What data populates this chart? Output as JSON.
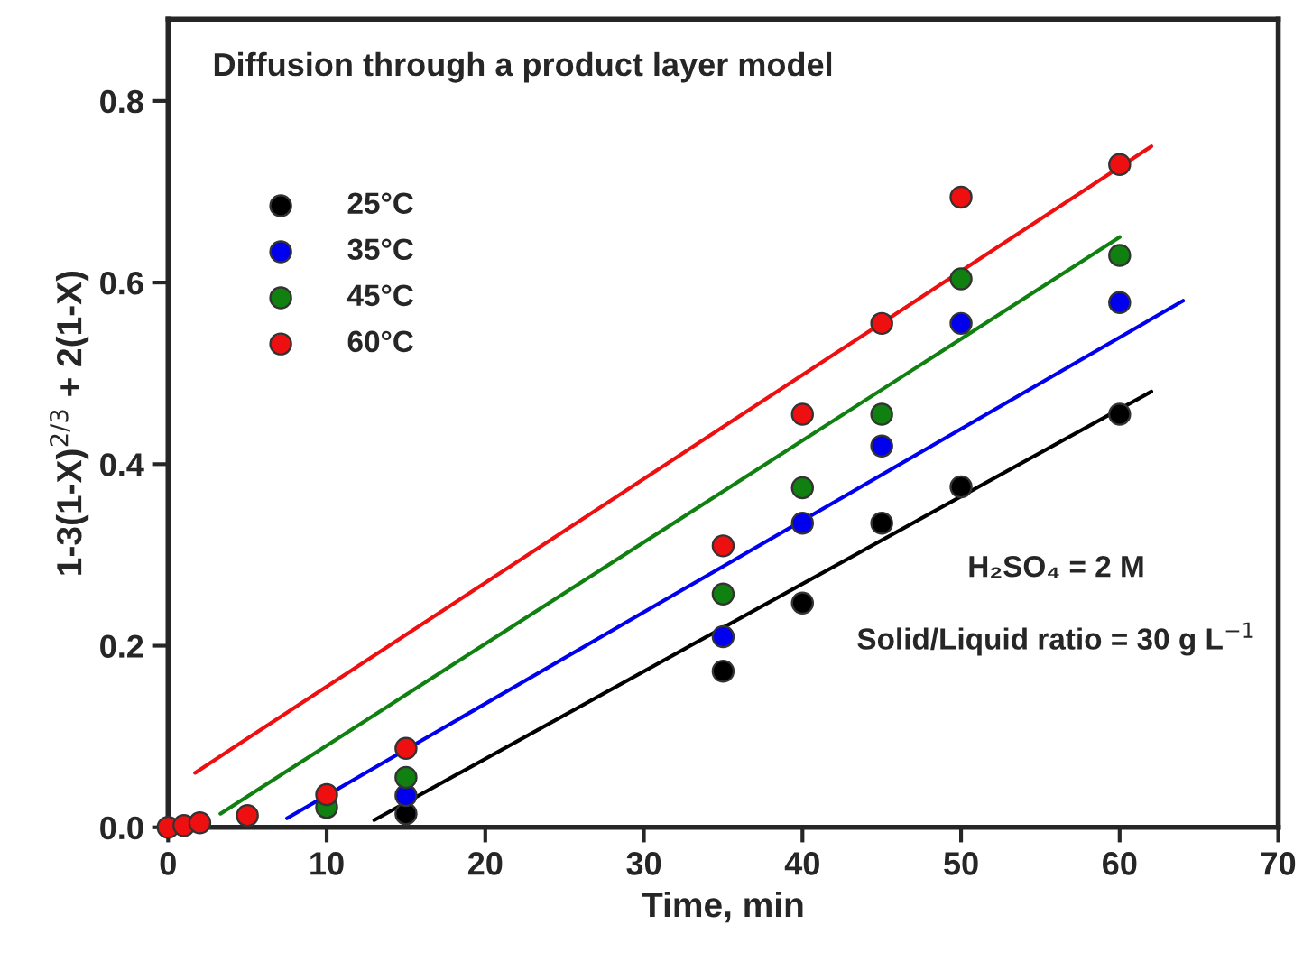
{
  "chart_data": {
    "type": "scatter",
    "title": "Diffusion through a product layer model",
    "xlabel": "Time, min",
    "ylabel": "1-3(1-X)$^{2/3}$ + 2(1-X)",
    "x": [
      0,
      1,
      2,
      5,
      10,
      15,
      35,
      40,
      45,
      50,
      60
    ],
    "series": [
      {
        "name": "25°C",
        "color": "#000000",
        "values": [
          null,
          null,
          null,
          null,
          null,
          0.015,
          0.172,
          0.247,
          0.335,
          0.375,
          0.455
        ]
      },
      {
        "name": "35°C",
        "color": "#0000ee",
        "values": [
          null,
          null,
          null,
          null,
          null,
          0.035,
          0.21,
          0.335,
          0.42,
          0.555,
          0.578
        ]
      },
      {
        "name": "45°C",
        "color": "#108010",
        "values": [
          null,
          null,
          null,
          null,
          0.022,
          0.055,
          0.257,
          0.374,
          0.455,
          0.604,
          0.63
        ]
      },
      {
        "name": "60°C",
        "color": "#ee1010",
        "values": [
          0,
          0.002,
          0.005,
          0.013,
          0.036,
          0.087,
          0.31,
          0.455,
          0.555,
          0.694,
          0.73
        ]
      },
      {
        "type": "line",
        "marker": "none",
        "color": "#000000",
        "x": [
          13,
          62
        ],
        "values": [
          0.008,
          0.48
        ]
      },
      {
        "type": "line",
        "marker": "none",
        "color": "#0000ee",
        "x": [
          7.5,
          64
        ],
        "values": [
          0.01,
          0.58
        ]
      },
      {
        "type": "line",
        "marker": "none",
        "color": "#108010",
        "x": [
          3.3,
          60
        ],
        "values": [
          0.015,
          0.65
        ]
      },
      {
        "type": "line",
        "marker": "none",
        "color": "#ee1010",
        "x": [
          1.7,
          62
        ],
        "values": [
          0.06,
          0.75
        ]
      }
    ],
    "annotations": [
      "H₂SO₄ = 2 M",
      "Solid/Liquid ratio = 30 g L$^{−1}$"
    ],
    "xlim": [
      0,
      70
    ],
    "ylim": [
      0,
      0.89
    ],
    "xticks": [
      0,
      10,
      20,
      30,
      40,
      50,
      60,
      70
    ],
    "yticks": [
      {
        "value": 0,
        "label": "0.0"
      },
      {
        "value": 0.2,
        "label": "0.2"
      },
      {
        "value": 0.4,
        "label": "0.4"
      },
      {
        "value": 0.6,
        "label": "0.6"
      },
      {
        "value": 0.8,
        "label": "0.8"
      }
    ],
    "legend": "top left",
    "marker": "circle",
    "grid": false
  }
}
